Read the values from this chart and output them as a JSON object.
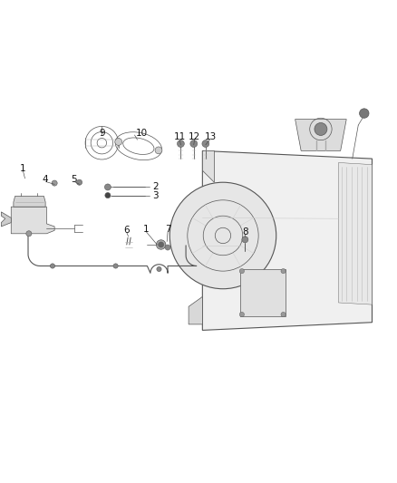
{
  "bg_color": "#ffffff",
  "line_color": "#555555",
  "dark_color": "#333333",
  "light_color": "#aaaaaa",
  "label_color": "#111111",
  "figsize": [
    4.38,
    5.33
  ],
  "dpi": 100
}
